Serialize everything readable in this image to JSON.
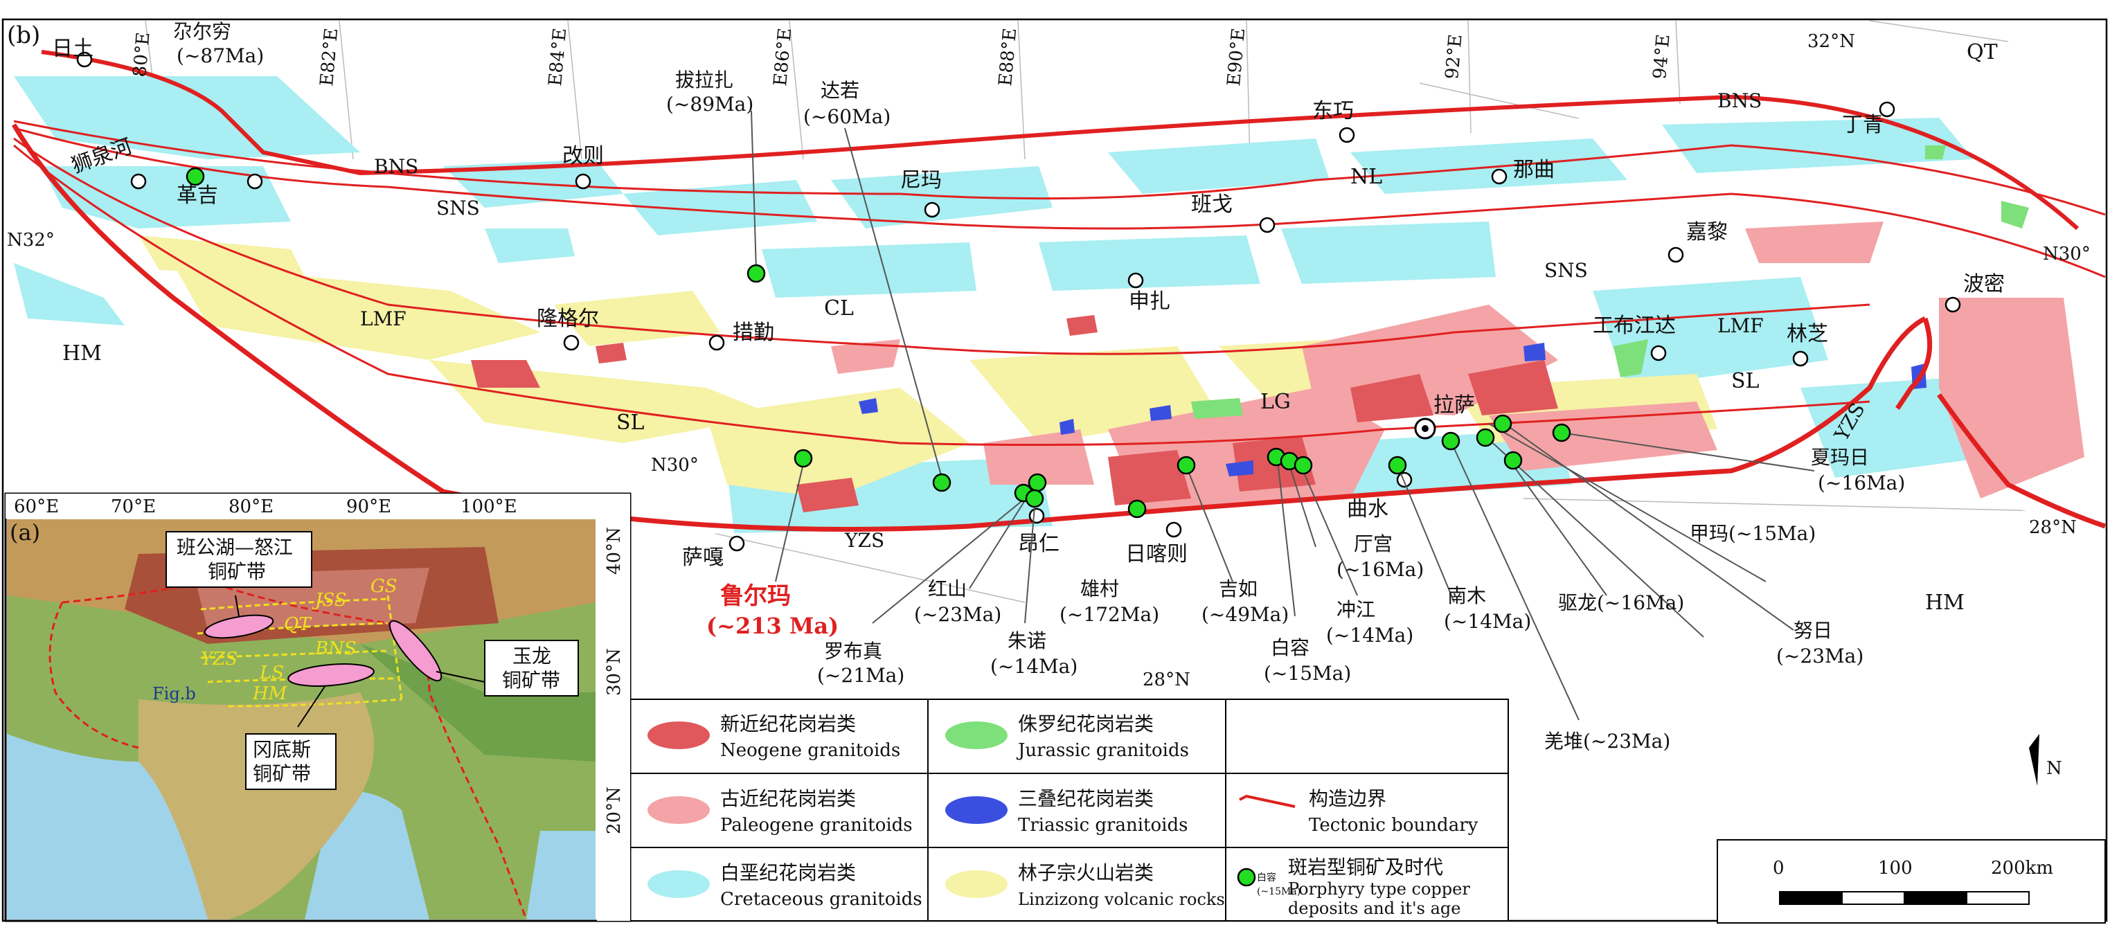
{
  "panel_labels": {
    "main": "(b)",
    "inset": "(a)"
  },
  "longitude_labels": [
    "80°E",
    "E82°E",
    "E84°E",
    "E86°E",
    "E88°E",
    "E90°E",
    "92°E",
    "94°E"
  ],
  "latitude_labels": {
    "n32_top": "32°N",
    "n32_left": "N32°",
    "n30_right": "N30°",
    "n30_mid": "N30°",
    "n28_right": "28°N",
    "n28_bottom": "28°N"
  },
  "terrane_labels": {
    "HM_west": "HM",
    "HM_east": "HM",
    "QT": "QT",
    "CL": "CL",
    "NL": "NL",
    "LG": "LG",
    "SL_west": "SL",
    "SL_east": "SL"
  },
  "boundary_labels": {
    "BNS_west": "BNS",
    "BNS_east": "BNS",
    "SNS_west": "SNS",
    "SNS_east": "SNS",
    "LMF_west": "LMF",
    "LMF_east": "LMF",
    "YZS_west": "YZS",
    "YZS_east": "YZS"
  },
  "towns": {
    "ritu": "日土",
    "shiquanhe": "狮泉河",
    "geji": "革吉",
    "gaize": "改则",
    "nima": "尼玛",
    "dongqiao": "东巧",
    "naqu": "那曲",
    "dingqing": "丁青",
    "bange": "班戈",
    "jiali": "嘉黎",
    "shenza": "申扎",
    "longgeer": "隆格尔",
    "cuoqin": "措勤",
    "gongbujiangda": "工布江达",
    "linzhi": "林芝",
    "bomi": "波密",
    "lasa": "拉萨",
    "qushui": "曲水",
    "rikaze": "日喀则",
    "angren": "昂仁",
    "saga": "萨嘎"
  },
  "deposits": {
    "duoerqiong": {
      "name": "尕尔穷",
      "age": "(~87Ma)"
    },
    "balazha": {
      "name": "拔拉扎",
      "age": "(~89Ma)"
    },
    "daruo": {
      "name": "达若",
      "age": "(~60Ma)"
    },
    "luerma": {
      "name": "鲁尔玛",
      "age": "(~213 Ma)"
    },
    "luobuzhen": {
      "name": "罗布真",
      "age": "(~21Ma)"
    },
    "hongshan": {
      "name": "红山",
      "age": "(~23Ma)"
    },
    "zhunuo": {
      "name": "朱诺",
      "age": "(~14Ma)"
    },
    "xiongcun": {
      "name": "雄村",
      "age": "(~172Ma)"
    },
    "jiru": {
      "name": "吉如",
      "age": "(~49Ma)"
    },
    "bairong": {
      "name": "白容",
      "age": "(~15Ma)"
    },
    "chongjiang": {
      "name": "冲江",
      "age": "(~14Ma)"
    },
    "tinggong": {
      "name": "厅宫",
      "age": "(~16Ma)"
    },
    "nanmu": {
      "name": "南木",
      "age": "(~14Ma)"
    },
    "qulong": {
      "name": "驱龙(~16Ma)"
    },
    "jiama": {
      "name": "甲玛(~15Ma)"
    },
    "xiamari": {
      "name": "夏玛日",
      "age": "(~16Ma)"
    },
    "nuri": {
      "name": "努日",
      "age": "(~23Ma)"
    },
    "qiangdui": {
      "name": "羌堆(~23Ma)"
    }
  },
  "legend": {
    "neogene": {
      "cn": "新近纪花岗岩类",
      "en": "Neogene granitoids",
      "color": "#e0585c"
    },
    "paleogene": {
      "cn": "古近纪花岗岩类",
      "en": "Paleogene granitoids",
      "color": "#f4a4a6"
    },
    "cretaceous": {
      "cn": "白垩纪花岗岩类",
      "en": "Cretaceous granitoids",
      "color": "#a8eef2"
    },
    "jurassic": {
      "cn": "侏罗纪花岗岩类",
      "en": "Jurassic granitoids",
      "color": "#7ee07a"
    },
    "triassic": {
      "cn": "三叠纪花岗岩类",
      "en": "Triassic granitoids",
      "color": "#3a4fe0"
    },
    "linzizong": {
      "cn": "林子宗火山岩类",
      "en": "Linzizong volcanic rocks",
      "color": "#f6f2a6"
    },
    "boundary": {
      "cn": "构造边界",
      "en": "Tectonic boundary",
      "color": "#e02020"
    },
    "deposit": {
      "cn": "斑岩型铜矿及时代",
      "en_line1": "Porphyry type copper",
      "en_line2": "deposits and it's age",
      "sample_name": "白容",
      "sample_age": "(~15Ma)",
      "color": "#22dd22"
    }
  },
  "scale_bar": {
    "ticks": [
      "0",
      "100",
      "200km"
    ]
  },
  "north_arrow": "N",
  "inset": {
    "lon_labels": [
      "60°E",
      "70°E",
      "80°E",
      "90°E",
      "100°E"
    ],
    "lat_labels": [
      "40°N",
      "30°N",
      "20°N"
    ],
    "belts": {
      "bangong": [
        "班公湖—怒江",
        "铜矿带"
      ],
      "yulong": [
        "玉龙",
        "铜矿带"
      ],
      "gangdese": [
        "冈底斯",
        "铜矿带"
      ]
    },
    "sutures": [
      "JSS",
      "QT",
      "BNS",
      "LS",
      "YZS",
      "HM",
      "GS"
    ],
    "fig_label": "Fig.b"
  }
}
